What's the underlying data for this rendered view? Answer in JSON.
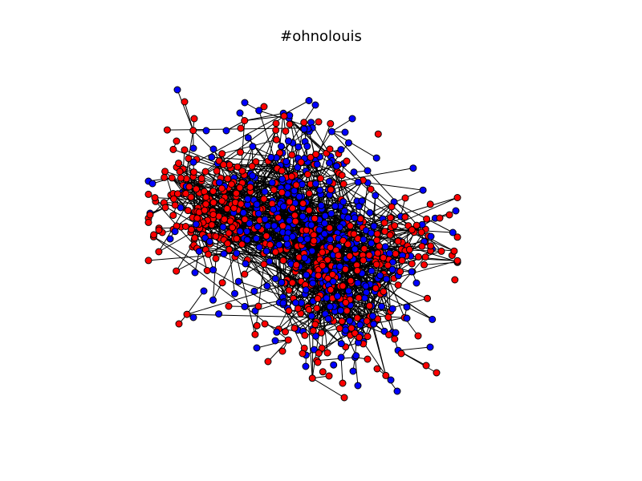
{
  "figure": {
    "title": "#ohnolouis"
  },
  "graph": {
    "type": "network",
    "node_groups": [
      {
        "name": "red",
        "color": "#ff0000"
      },
      {
        "name": "blue",
        "color": "#0000ff"
      }
    ],
    "edge_color": "#000000",
    "node_outline_color": "#000000"
  }
}
